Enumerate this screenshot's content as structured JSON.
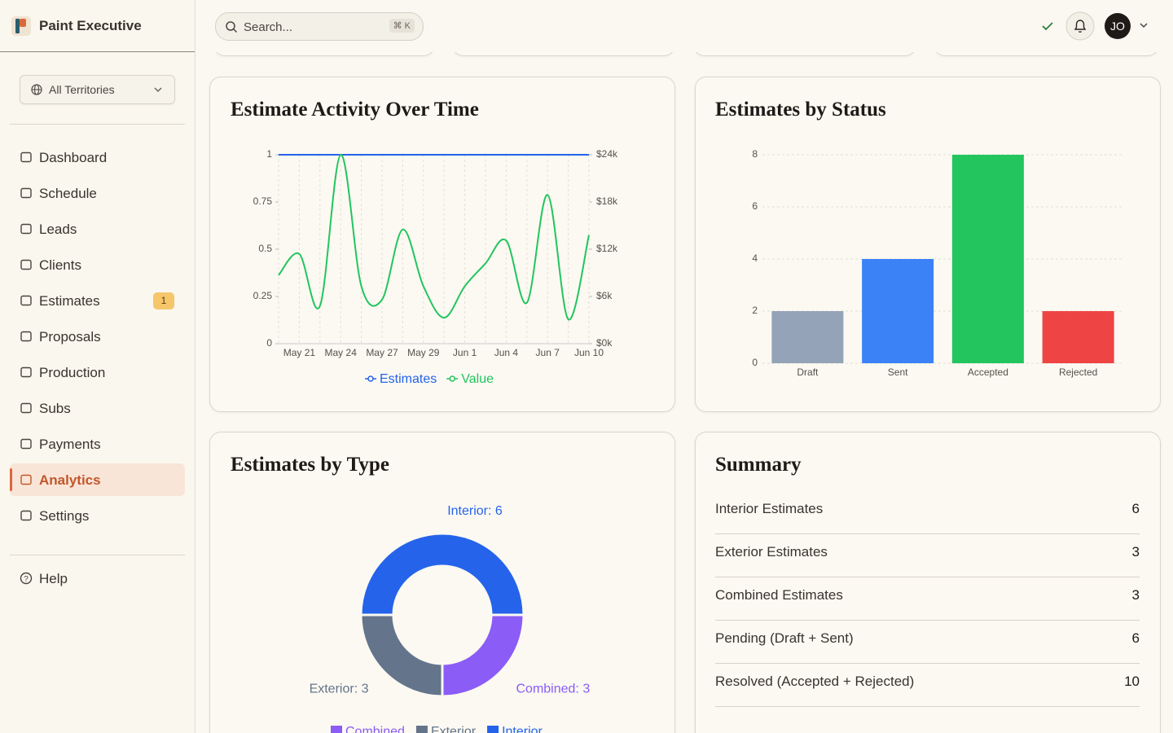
{
  "app": {
    "name": "Paint Executive"
  },
  "header": {
    "search_placeholder": "Search...",
    "search_shortcut": "⌘ K",
    "avatar": "JO"
  },
  "sidebar": {
    "territory": "All Territories",
    "nav": [
      {
        "label": "Dashboard"
      },
      {
        "label": "Schedule"
      },
      {
        "label": "Leads"
      },
      {
        "label": "Clients"
      },
      {
        "label": "Estimates",
        "badge": 1
      },
      {
        "label": "Proposals"
      },
      {
        "label": "Production"
      },
      {
        "label": "Subs"
      },
      {
        "label": "Payments"
      },
      {
        "label": "Analytics",
        "active": true
      },
      {
        "label": "Settings"
      }
    ],
    "help": "Help"
  },
  "chart_data": [
    {
      "type": "line",
      "title": "Estimate Activity Over Time",
      "categories": [
        null,
        "May 21",
        null,
        "May 24",
        null,
        "May 27",
        null,
        "May 29",
        null,
        "Jun 1",
        null,
        "Jun 4",
        null,
        "Jun 7",
        null,
        "Jun 10"
      ],
      "series": [
        {
          "name": "Estimates",
          "color": "#2563eb",
          "values": [
            1,
            1,
            1,
            1,
            1,
            1,
            1,
            1,
            1,
            1,
            1,
            1,
            1,
            1,
            1,
            1
          ]
        },
        {
          "name": "Value",
          "color": "#22c55e",
          "axis": "y2",
          "values": [
            8700,
            11400,
            4800,
            24000,
            7300,
            5600,
            14500,
            7300,
            3300,
            7300,
            10200,
            13100,
            5200,
            18900,
            3100,
            13800
          ]
        }
      ],
      "ylim": [
        0,
        1
      ],
      "yticks": [
        0,
        0.25,
        0.5,
        0.75,
        1
      ],
      "y2lim": [
        0,
        24000
      ],
      "y2ticks": [
        {
          "value": 0,
          "label": "$0k"
        },
        {
          "value": 6000,
          "label": "$6k"
        },
        {
          "value": 12000,
          "label": "$12k"
        },
        {
          "value": 18000,
          "label": "$18k"
        },
        {
          "value": 24000,
          "label": "$24k"
        }
      ],
      "grid": true,
      "legend": "bottom"
    },
    {
      "type": "bar",
      "title": "Estimates by Status",
      "categories": [
        "Draft",
        "Sent",
        "Accepted",
        "Rejected"
      ],
      "values": [
        2,
        4,
        8,
        2
      ],
      "colors": [
        "#94a3b8",
        "#3b82f6",
        "#22c55e",
        "#ef4444"
      ],
      "ylim": [
        0,
        8
      ],
      "yticks": [
        0,
        2,
        4,
        6,
        8
      ],
      "grid": true
    },
    {
      "type": "pie",
      "title": "Estimates by Type",
      "categories": [
        "Combined",
        "Exterior",
        "Interior"
      ],
      "values": [
        3,
        3,
        6
      ],
      "value_labels": [
        "Combined: 3",
        "Exterior: 3",
        "Interior: 6"
      ],
      "colors": [
        "#8b5cf6",
        "#64748b",
        "#2563eb"
      ],
      "donut": true,
      "legend": "bottom"
    }
  ],
  "summary": {
    "title": "Summary",
    "rows": [
      {
        "label": "Interior Estimates",
        "value": 6
      },
      {
        "label": "Exterior Estimates",
        "value": 3
      },
      {
        "label": "Combined Estimates",
        "value": 3
      },
      {
        "label": "Pending (Draft + Sent)",
        "value": 6
      },
      {
        "label": "Resolved (Accepted + Rejected)",
        "value": 10
      }
    ]
  }
}
